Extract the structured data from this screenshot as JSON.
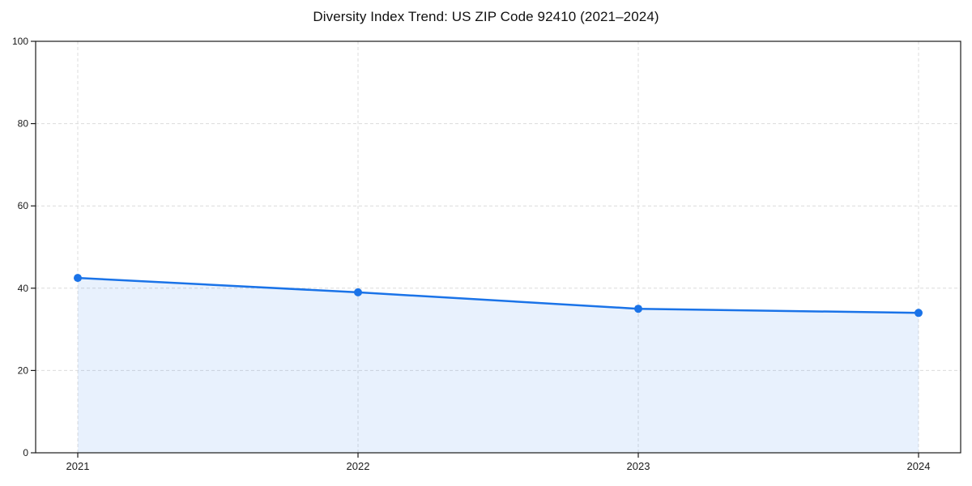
{
  "chart_data": {
    "type": "area",
    "title": "Diversity Index Trend: US ZIP Code 92410 (2021–2024)",
    "x": [
      2021,
      2022,
      2023,
      2024
    ],
    "x_labels": [
      "2021",
      "2022",
      "2023",
      "2024"
    ],
    "values": [
      42.5,
      39.0,
      35.0,
      34.0
    ],
    "xlabel": "",
    "ylabel": "",
    "ylim": [
      0,
      100
    ],
    "yticks": [
      0,
      20,
      40,
      60,
      80,
      100
    ],
    "grid": "dashed light-gray, horizontal at yticks and vertical at each year",
    "legend": "none",
    "marker": "circle",
    "line_width": 2.5,
    "marker_radius": 5,
    "colors": {
      "line": "#1a73e8",
      "marker": "#1a73e8",
      "area_fill": "#1a73e8",
      "area_opacity": 0.1,
      "grid": "#dcdcdc",
      "axis": "#1a1a1a",
      "tick_label": "#1a1a1a",
      "title": "#111111",
      "background": "#ffffff"
    }
  }
}
